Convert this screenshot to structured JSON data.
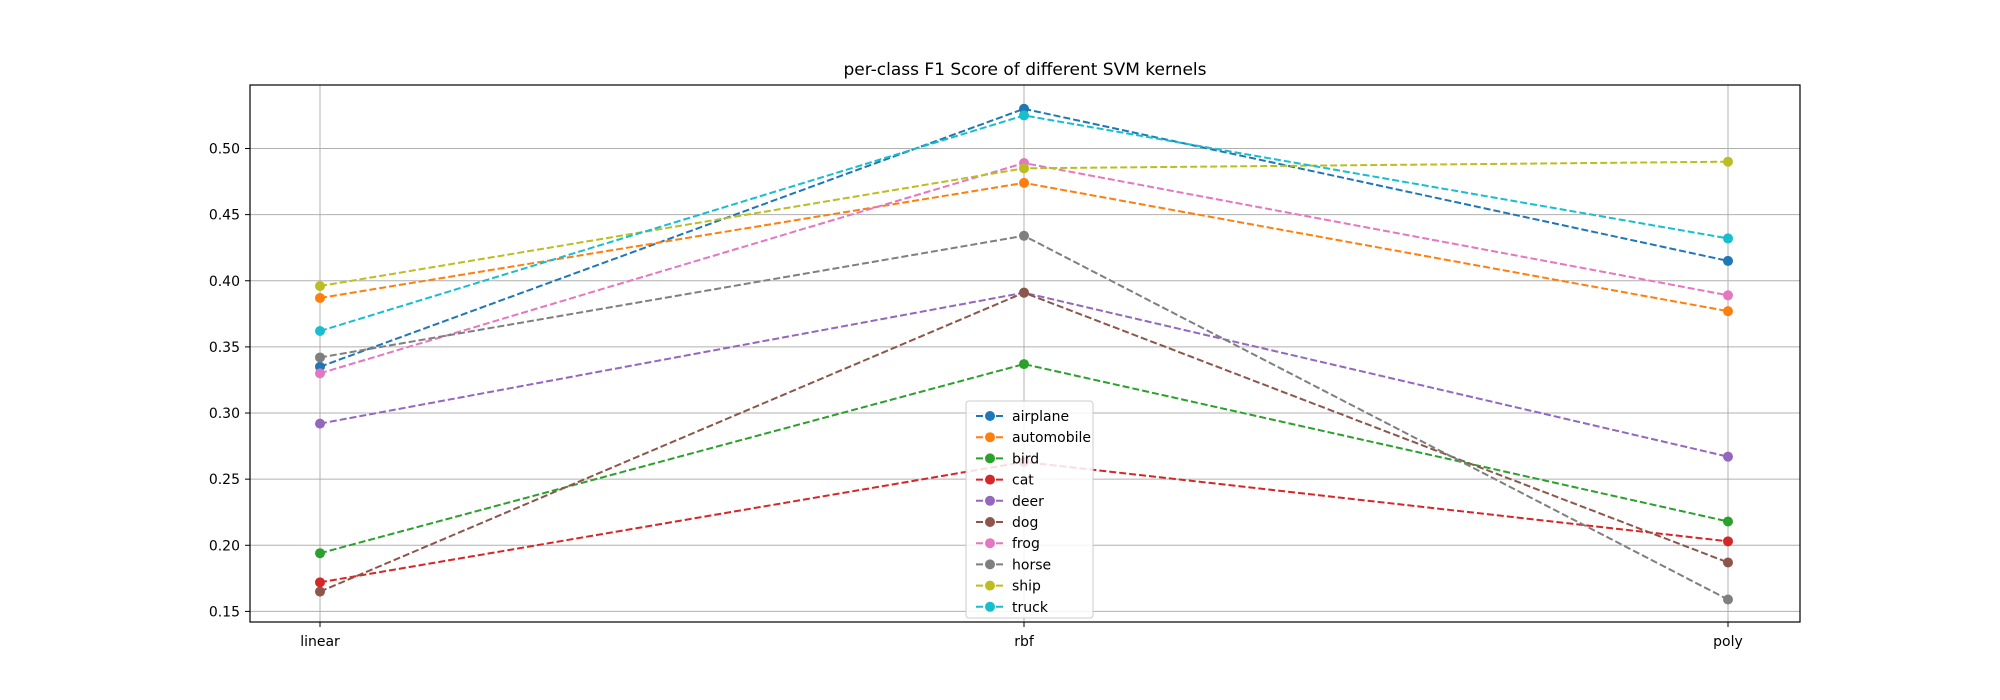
{
  "chart_data": {
    "type": "line",
    "title": "per-class F1 Score of different SVM kernels",
    "xlabel": "",
    "ylabel": "",
    "categories": [
      "linear",
      "rbf",
      "poly"
    ],
    "ylim": [
      0.142,
      0.548
    ],
    "yticks": [
      0.15,
      0.2,
      0.25,
      0.3,
      0.35,
      0.4,
      0.45,
      0.5
    ],
    "ytick_labels": [
      "0.15",
      "0.20",
      "0.25",
      "0.30",
      "0.35",
      "0.40",
      "0.45",
      "0.50"
    ],
    "grid": true,
    "line_style": "dashed",
    "marker": "circle",
    "legend_position": "lower-center",
    "series": [
      {
        "name": "airplane",
        "color": "#1f77b4",
        "values": [
          0.335,
          0.53,
          0.415
        ]
      },
      {
        "name": "automobile",
        "color": "#ff7f0e",
        "values": [
          0.387,
          0.474,
          0.377
        ]
      },
      {
        "name": "bird",
        "color": "#2ca02c",
        "values": [
          0.194,
          0.337,
          0.218
        ]
      },
      {
        "name": "cat",
        "color": "#d62728",
        "values": [
          0.172,
          0.263,
          0.203
        ]
      },
      {
        "name": "deer",
        "color": "#9467bd",
        "values": [
          0.292,
          0.391,
          0.267
        ]
      },
      {
        "name": "dog",
        "color": "#8c564b",
        "values": [
          0.165,
          0.391,
          0.187
        ]
      },
      {
        "name": "frog",
        "color": "#e377c2",
        "values": [
          0.33,
          0.489,
          0.389
        ]
      },
      {
        "name": "horse",
        "color": "#7f7f7f",
        "values": [
          0.342,
          0.434,
          0.159
        ]
      },
      {
        "name": "ship",
        "color": "#bcbd22",
        "values": [
          0.396,
          0.485,
          0.49
        ]
      },
      {
        "name": "truck",
        "color": "#17becf",
        "values": [
          0.362,
          0.525,
          0.432
        ]
      }
    ]
  }
}
